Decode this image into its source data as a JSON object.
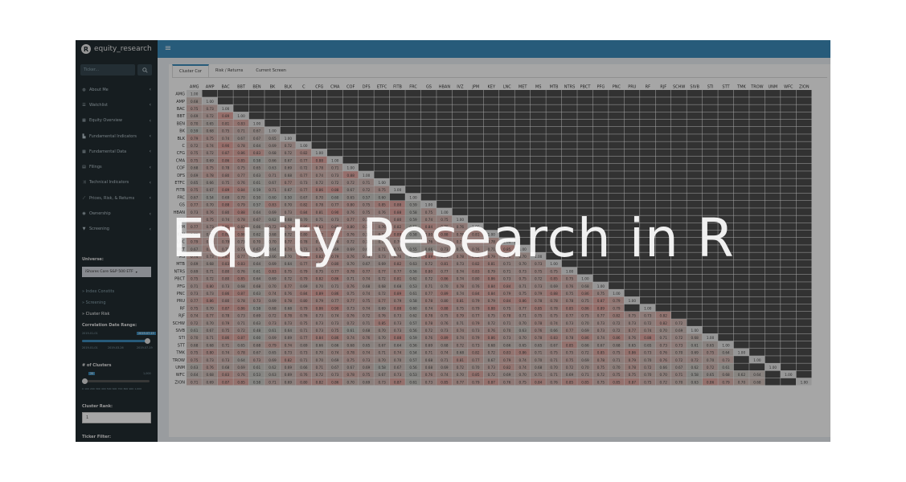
{
  "app": {
    "title": "equity_research",
    "logo_letter": "R",
    "menu_icon": "hamburger-icon"
  },
  "sidebar": {
    "search_placeholder": "Ticker...",
    "items": [
      {
        "label": "About Me",
        "icon": "user-icon"
      },
      {
        "label": "Watchlist",
        "icon": "list-icon"
      },
      {
        "label": "Equity Overview",
        "icon": "table-icon"
      },
      {
        "label": "Fundamental Indicators",
        "icon": "bar-chart-icon"
      },
      {
        "label": "Fundamental Data",
        "icon": "table-icon"
      },
      {
        "label": "Filings",
        "icon": "file-icon"
      },
      {
        "label": "Technical Indicators",
        "icon": "random-icon"
      },
      {
        "label": "Prices, Risk, & Returns",
        "icon": "line-chart-icon"
      },
      {
        "label": "Ownership",
        "icon": "users-icon"
      },
      {
        "label": "Screening",
        "icon": "filter-icon"
      }
    ],
    "universe_label": "Universe:",
    "universe_value": "iShares Core S&P 500 ETF",
    "subitems": [
      {
        "label": "Index Constits"
      },
      {
        "label": "Screening"
      },
      {
        "label": "Cluster Risk"
      }
    ],
    "corr_range_label": "Correlation Date Range:",
    "corr_start": "2019-01-01",
    "corr_end": "2019-07-19",
    "corr_ticks": [
      "2019-01-01",
      "2019-03-26",
      "2019-07-19"
    ],
    "clusters_label": "# of Clusters",
    "clusters_value": "20",
    "clusters_max": "1,000",
    "clusters_ticks": [
      "0",
      "100",
      "200",
      "300",
      "400",
      "500",
      "600",
      "700",
      "800",
      "900",
      "1,000"
    ],
    "cluster_rank_label": "Cluster Rank:",
    "cluster_rank_value": "1",
    "ticker_filter_label": "Ticker Filter:"
  },
  "tabs": [
    {
      "label": "Cluster Cor",
      "active": true
    },
    {
      "label": "Risk / Returns",
      "active": false
    },
    {
      "label": "Current Screen",
      "active": false
    }
  ],
  "colors": {
    "sidebar_bg": "#222d32",
    "header_bg": "#3c8dbc",
    "diag": "#e6e6e6",
    "low": "#cdcdc8",
    "high": "#e8a8a2",
    "empty": "#4e4e4e"
  },
  "matrix": {
    "tickers": [
      "AMG",
      "AMP",
      "BAC",
      "BBT",
      "BEN",
      "BK",
      "BLK",
      "C",
      "CFG",
      "CMA",
      "COF",
      "DFS",
      "ETFC",
      "FITB",
      "FRC",
      "GS",
      "HBAN",
      "IVZ",
      "JPM",
      "KEY",
      "LNC",
      "MET",
      "MS",
      "MTB",
      "NTRS",
      "PBCT",
      "PFG",
      "PNC",
      "PRU",
      "RF",
      "RJF",
      "SCHW",
      "SIVB",
      "STI",
      "STT",
      "TMK",
      "TROW",
      "UNM",
      "WFC",
      "ZION"
    ],
    "rows": [
      [],
      [
        "0.68"
      ],
      [
        "0.75",
        "0.73"
      ],
      [
        "0.69",
        "0.72",
        "0.89"
      ],
      [
        "0.70",
        "0.65",
        "0.81",
        "0.83"
      ],
      [
        "0.59",
        "0.68",
        "0.75",
        "0.71",
        "0.67"
      ],
      [
        "0.79",
        "0.75",
        "0.74",
        "0.67",
        "0.67",
        "0.65"
      ],
      [
        "0.72",
        "0.74",
        "0.90",
        "0.78",
        "0.64",
        "0.69",
        "0.72"
      ],
      [
        "0.75",
        "0.72",
        "0.87",
        "0.86",
        "0.83",
        "0.68",
        "0.72",
        "0.82"
      ],
      [
        "0.75",
        "0.69",
        "0.86",
        "0.85",
        "0.58",
        "0.66",
        "0.67",
        "0.77",
        "0.88"
      ],
      [
        "0.68",
        "0.75",
        "0.78",
        "0.75",
        "0.65",
        "0.63",
        "0.69",
        "0.72",
        "0.78",
        "0.71"
      ],
      [
        "0.69",
        "0.78",
        "0.80",
        "0.77",
        "0.63",
        "0.71",
        "0.68",
        "0.77",
        "0.74",
        "0.73",
        "0.88"
      ],
      [
        "0.65",
        "0.66",
        "0.75",
        "0.76",
        "0.61",
        "0.67",
        "0.77",
        "0.73",
        "0.72",
        "0.72",
        "0.72",
        "0.71"
      ],
      [
        "0.75",
        "0.67",
        "0.89",
        "0.84",
        "0.59",
        "0.71",
        "0.67",
        "0.77",
        "0.86",
        "0.88",
        "0.67",
        "0.72",
        "0.75"
      ],
      [
        "0.67",
        "0.54",
        "0.69",
        "0.70",
        "0.50",
        "0.60",
        "0.50",
        "0.67",
        "0.70",
        "0.60",
        "0.65",
        "0.57",
        "0.60"
      ],
      [
        "0.77",
        "0.70",
        "0.88",
        "0.79",
        "0.57",
        "0.83",
        "0.70",
        "0.82",
        "0.78",
        "0.77",
        "0.80",
        "0.75",
        "0.85",
        "0.88",
        "0.59"
      ],
      [
        "0.73",
        "0.76",
        "0.80",
        "0.88",
        "0.64",
        "0.69",
        "0.73",
        "0.84",
        "0.81",
        "0.90",
        "0.76",
        "0.75",
        "0.76",
        "0.88",
        "0.58",
        "0.75"
      ],
      [
        "0.76",
        "0.75",
        "0.74",
        "0.78",
        "0.67",
        "0.62",
        "0.68",
        "0.70",
        "0.71",
        "0.73",
        "0.77",
        "0.75",
        "0.73",
        "0.80",
        "0.59",
        "0.74",
        "0.75"
      ],
      [
        "0.77",
        "0.73",
        "0.91",
        "0.82",
        "0.66",
        "0.72",
        "0.79",
        "0.86",
        "0.83",
        "0.80",
        "0.80",
        "0.79",
        "0.76",
        "0.82",
        "0.61",
        "0.84",
        "0.79",
        "0.76"
      ],
      [
        "0.72",
        "0.69",
        "0.88",
        "0.86",
        "0.62",
        "0.68",
        "0.72",
        "0.80",
        "0.82",
        "0.86",
        "0.76",
        "0.73",
        "0.74",
        "0.89",
        "0.58",
        "0.80",
        "0.88",
        "0.78",
        "0.81"
      ],
      [
        "0.79",
        "0.75",
        "0.79",
        "0.73",
        "0.70",
        "0.70",
        "0.77",
        "0.78",
        "0.77",
        "0.74",
        "0.72",
        "0.72",
        "0.70",
        "0.76",
        "0.54",
        "0.76",
        "0.76",
        "0.78",
        "0.80",
        "0.78"
      ],
      [
        "0.67",
        "0.77",
        "0.75",
        "0.73",
        "0.67",
        "0.64",
        "0.74",
        "0.73",
        "0.76",
        "0.69",
        "0.69",
        "0.69",
        "0.71",
        "0.72",
        "0.55",
        "0.66",
        "0.73",
        "0.70",
        "0.76",
        "0.71",
        "0.85"
      ],
      [
        "0.74",
        "0.73",
        "0.87",
        "0.77",
        "0.66",
        "0.66",
        "0.70",
        "0.86",
        "0.82",
        "0.79",
        "0.76",
        "0.73",
        "0.73",
        "0.76",
        "0.56",
        "0.89",
        "0.75",
        "0.78",
        "0.82",
        "0.79",
        "0.76",
        "0.70"
      ],
      [
        "0.69",
        "0.68",
        "0.83",
        "0.83",
        "0.64",
        "0.69",
        "0.64",
        "0.77",
        "0.80",
        "0.80",
        "0.70",
        "0.67",
        "0.69",
        "0.82",
        "0.63",
        "0.72",
        "0.81",
        "0.73",
        "0.82",
        "0.81",
        "0.71",
        "0.70",
        "0.73"
      ],
      [
        "0.69",
        "0.71",
        "0.80",
        "0.76",
        "0.61",
        "0.83",
        "0.75",
        "0.79",
        "0.75",
        "0.77",
        "0.78",
        "0.77",
        "0.77",
        "0.77",
        "0.56",
        "0.80",
        "0.77",
        "0.74",
        "0.83",
        "0.79",
        "0.71",
        "0.73",
        "0.75",
        "0.75"
      ],
      [
        "0.75",
        "0.72",
        "0.80",
        "0.85",
        "0.64",
        "0.69",
        "0.72",
        "0.79",
        "0.82",
        "0.86",
        "0.71",
        "0.74",
        "0.72",
        "0.81",
        "0.62",
        "0.72",
        "0.86",
        "0.74",
        "0.80",
        "0.86",
        "0.73",
        "0.75",
        "0.72",
        "0.85",
        "0.75"
      ],
      [
        "0.71",
        "0.80",
        "0.73",
        "0.68",
        "0.68",
        "0.70",
        "0.77",
        "0.69",
        "0.70",
        "0.71",
        "0.76",
        "0.68",
        "0.68",
        "0.68",
        "0.53",
        "0.71",
        "0.70",
        "0.78",
        "0.76",
        "0.84",
        "0.84",
        "0.71",
        "0.73",
        "0.69",
        "0.76",
        "0.68"
      ],
      [
        "0.73",
        "0.73",
        "0.86",
        "0.87",
        "0.63",
        "0.74",
        "0.76",
        "0.84",
        "0.89",
        "0.86",
        "0.75",
        "0.74",
        "0.72",
        "0.89",
        "0.61",
        "0.77",
        "0.89",
        "0.74",
        "0.84",
        "0.84",
        "0.79",
        "0.75",
        "0.79",
        "0.88",
        "0.75",
        "0.86",
        "0.75"
      ],
      [
        "0.77",
        "0.86",
        "0.80",
        "0.78",
        "0.73",
        "0.69",
        "0.78",
        "0.80",
        "0.79",
        "0.77",
        "0.77",
        "0.75",
        "0.77",
        "0.79",
        "0.58",
        "0.78",
        "0.80",
        "0.81",
        "0.79",
        "0.79",
        "0.84",
        "0.86",
        "0.78",
        "0.78",
        "0.78",
        "0.75",
        "0.87",
        "0.79"
      ],
      [
        "0.75",
        "0.70",
        "0.87",
        "0.86",
        "0.58",
        "0.68",
        "0.68",
        "0.79",
        "0.86",
        "0.90",
        "0.73",
        "0.74",
        "0.69",
        "0.88",
        "0.60",
        "0.74",
        "0.88",
        "0.75",
        "0.79",
        "0.88",
        "0.75",
        "0.77",
        "0.85",
        "0.78",
        "0.85",
        "0.86",
        "0.89",
        "0.79"
      ],
      [
        "0.74",
        "0.77",
        "0.78",
        "0.73",
        "0.69",
        "0.72",
        "0.78",
        "0.76",
        "0.73",
        "0.74",
        "0.76",
        "0.72",
        "0.76",
        "0.73",
        "0.62",
        "0.78",
        "0.75",
        "0.79",
        "0.77",
        "0.75",
        "0.78",
        "0.71",
        "0.75",
        "0.75",
        "0.77",
        "0.75",
        "0.77",
        "0.82",
        "0.75",
        "0.73",
        "0.82"
      ],
      [
        "0.72",
        "0.70",
        "0.79",
        "0.71",
        "0.63",
        "0.73",
        "0.73",
        "0.75",
        "0.73",
        "0.73",
        "0.72",
        "0.71",
        "0.85",
        "0.73",
        "0.57",
        "0.78",
        "0.76",
        "0.71",
        "0.79",
        "0.72",
        "0.71",
        "0.70",
        "0.78",
        "0.74",
        "0.73",
        "0.70",
        "0.73",
        "0.72",
        "0.73",
        "0.72",
        "0.82",
        "0.72"
      ],
      [
        "0.61",
        "0.67",
        "0.75",
        "0.72",
        "0.48",
        "0.61",
        "0.64",
        "0.71",
        "0.73",
        "0.75",
        "0.61",
        "0.68",
        "0.70",
        "0.73",
        "0.56",
        "0.72",
        "0.73",
        "0.74",
        "0.73",
        "0.76",
        "0.70",
        "0.63",
        "0.76",
        "0.66",
        "0.77",
        "0.69",
        "0.73",
        "0.72",
        "0.77",
        "0.74",
        "0.70",
        "0.69"
      ],
      [
        "0.70",
        "0.71",
        "0.86",
        "0.87",
        "0.60",
        "0.69",
        "0.69",
        "0.77",
        "0.84",
        "0.86",
        "0.74",
        "0.76",
        "0.70",
        "0.88",
        "0.59",
        "0.76",
        "0.89",
        "0.74",
        "0.79",
        "0.86",
        "0.73",
        "0.70",
        "0.78",
        "0.83",
        "0.78",
        "0.86",
        "0.74",
        "0.86",
        "0.76",
        "0.88",
        "0.71",
        "0.72",
        "0.68"
      ],
      [
        "0.68",
        "0.68",
        "0.71",
        "0.65",
        "0.68",
        "0.79",
        "0.74",
        "0.69",
        "0.66",
        "0.66",
        "0.68",
        "0.65",
        "0.67",
        "0.64",
        "0.56",
        "0.69",
        "0.68",
        "0.72",
        "0.73",
        "0.68",
        "0.66",
        "0.65",
        "0.65",
        "0.67",
        "0.85",
        "0.66",
        "0.67",
        "0.68",
        "0.65",
        "0.65",
        "0.73",
        "0.73",
        "0.61",
        "0.65"
      ],
      [
        "0.75",
        "0.80",
        "0.74",
        "0.78",
        "0.67",
        "0.65",
        "0.73",
        "0.73",
        "0.70",
        "0.74",
        "0.78",
        "0.74",
        "0.71",
        "0.74",
        "0.54",
        "0.71",
        "0.74",
        "0.68",
        "0.82",
        "0.72",
        "0.83",
        "0.86",
        "0.71",
        "0.75",
        "0.75",
        "0.72",
        "0.85",
        "0.75",
        "0.86",
        "0.73",
        "0.76",
        "0.70",
        "0.69",
        "0.75",
        "0.64"
      ],
      [
        "0.75",
        "0.73",
        "0.73",
        "0.64",
        "0.73",
        "0.69",
        "0.82",
        "0.71",
        "0.70",
        "0.69",
        "0.75",
        "0.73",
        "0.70",
        "0.70",
        "0.57",
        "0.68",
        "0.71",
        "0.81",
        "0.77",
        "0.67",
        "0.79",
        "0.74",
        "0.70",
        "0.71",
        "0.75",
        "0.69",
        "0.78",
        "0.71",
        "0.79",
        "0.70",
        "0.76",
        "0.72",
        "0.72",
        "0.70",
        "0.73"
      ],
      [
        "0.63",
        "0.76",
        "0.68",
        "0.69",
        "0.61",
        "0.62",
        "0.69",
        "0.66",
        "0.71",
        "0.67",
        "0.67",
        "0.69",
        "0.58",
        "0.67",
        "0.56",
        "0.68",
        "0.69",
        "0.72",
        "0.70",
        "0.73",
        "0.82",
        "0.74",
        "0.68",
        "0.70",
        "0.72",
        "0.70",
        "0.75",
        "0.70",
        "0.78",
        "0.72",
        "0.66",
        "0.67",
        "0.62",
        "0.72",
        "0.61"
      ],
      [
        "0.64",
        "0.68",
        "0.83",
        "0.76",
        "0.53",
        "0.63",
        "0.69",
        "0.76",
        "0.72",
        "0.73",
        "0.78",
        "0.75",
        "0.67",
        "0.73",
        "0.53",
        "0.76",
        "0.74",
        "0.70",
        "0.85",
        "0.72",
        "0.69",
        "0.70",
        "0.71",
        "0.71",
        "0.69",
        "0.71",
        "0.72",
        "0.75",
        "0.75",
        "0.70",
        "0.70",
        "0.71",
        "0.58",
        "0.65",
        "0.68",
        "0.62",
        "0.64"
      ],
      [
        "0.71",
        "0.69",
        "0.87",
        "0.85",
        "0.58",
        "0.71",
        "0.69",
        "0.80",
        "0.82",
        "0.86",
        "0.70",
        "0.69",
        "0.73",
        "0.87",
        "0.61",
        "0.73",
        "0.85",
        "0.77",
        "0.79",
        "0.87",
        "0.76",
        "0.75",
        "0.84",
        "0.76",
        "0.85",
        "0.85",
        "0.75",
        "0.85",
        "0.87",
        "0.75",
        "0.72",
        "0.70",
        "0.63",
        "0.86",
        "0.79",
        "0.70",
        "0.68"
      ]
    ]
  }
}
